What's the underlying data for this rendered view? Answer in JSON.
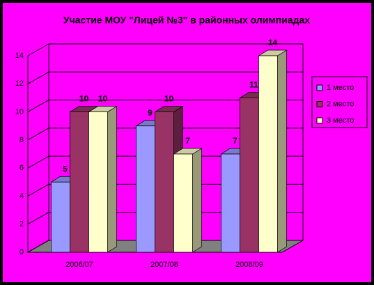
{
  "chart_data": {
    "type": "bar3d",
    "title": "Участие МОУ \"Лицей №3\" в районных олимпиадах",
    "categories": [
      "2006/07",
      "2007/08",
      "2008/09"
    ],
    "series": [
      {
        "name": "1 место",
        "color": "#9999ff",
        "values": [
          5,
          9,
          7
        ]
      },
      {
        "name": "2 место",
        "color": "#993366",
        "values": [
          10,
          10,
          11
        ]
      },
      {
        "name": "3 место",
        "color": "#ffffcc",
        "values": [
          10,
          7,
          14
        ]
      }
    ],
    "ylim": [
      0,
      14
    ],
    "yticks": [
      0,
      2,
      4,
      6,
      8,
      10,
      12,
      14
    ],
    "grid": true,
    "legend": "right"
  }
}
